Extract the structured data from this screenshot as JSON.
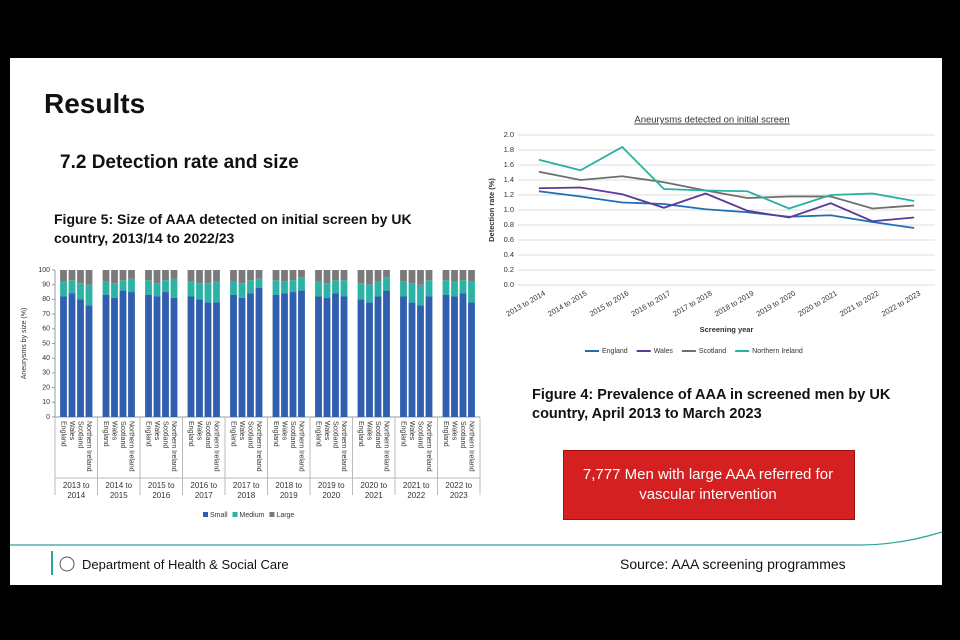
{
  "title": "Results",
  "section": "7.2 Detection rate and size",
  "figure5_caption": "Figure 5: Size of AAA detected on initial screen by UK country, 2013/14 to 2022/23",
  "figure4_caption": "Figure 4: Prevalence of AAA in screened men by UK country, April 2013 to March 2023",
  "callout": "7,777 Men with large AAA referred for vascular intervention",
  "footer_org": "Department of Health & Social Care",
  "footer_source": "Source: AAA screening programmes",
  "chart_data": [
    {
      "type": "stacked_bar",
      "y_label": "Aneurysms by size (%)",
      "groups": [
        "2013 to 2014",
        "2014 to 2015",
        "2015 to 2016",
        "2016 to 2017",
        "2017 to 2018",
        "2018 to 2019",
        "2019 to 2020",
        "2020 to 2021",
        "2021 to 2022",
        "2022 to 2023"
      ],
      "categories": [
        "England",
        "Wales",
        "Scotland",
        "Northern Ireland",
        "England",
        "Wales",
        "Scotland",
        "Northern Ireland",
        "England",
        "Wales",
        "Scotland",
        "Northern Ireland",
        "England",
        "Wales",
        "Scotland",
        "Northern Ireland",
        "England",
        "Wales",
        "Scotland",
        "Northern Ireland",
        "England",
        "Wales",
        "Scotland",
        "Northern Ireland",
        "England",
        "Wales",
        "Scotland",
        "Northern Ireland",
        "England",
        "Wales",
        "Scotland",
        "Northern Ireland",
        "England",
        "Wales",
        "Scotland",
        "Northern Ireland",
        "England",
        "Wales",
        "Scotland",
        "Northern Ireland"
      ],
      "series": [
        {
          "name": "Small",
          "color": "#2f5fae",
          "values": [
            82,
            84,
            80,
            76,
            83,
            81,
            86,
            85,
            83,
            82,
            85,
            81,
            82,
            80,
            78,
            78,
            83,
            81,
            84,
            88,
            83,
            84,
            85,
            86,
            82,
            81,
            84,
            82,
            80,
            78,
            82,
            86,
            82,
            78,
            76,
            82,
            83,
            82,
            84,
            78
          ]
        },
        {
          "name": "Medium",
          "color": "#2cb3a5",
          "values": [
            10,
            9,
            11,
            14,
            9,
            10,
            7,
            9,
            10,
            9,
            8,
            13,
            10,
            11,
            13,
            14,
            9,
            10,
            9,
            6,
            10,
            8,
            8,
            9,
            10,
            10,
            9,
            11,
            11,
            12,
            10,
            9,
            10,
            13,
            14,
            11,
            10,
            10,
            9,
            14
          ]
        },
        {
          "name": "Large",
          "color": "#7a7a7a",
          "values": [
            8,
            7,
            9,
            10,
            8,
            9,
            7,
            6,
            7,
            9,
            7,
            6,
            8,
            9,
            9,
            8,
            8,
            9,
            7,
            6,
            7,
            8,
            7,
            5,
            8,
            9,
            7,
            7,
            9,
            10,
            8,
            5,
            8,
            9,
            10,
            7,
            7,
            8,
            7,
            8
          ]
        }
      ],
      "ylim": [
        0,
        100
      ],
      "yticks": [
        0,
        10,
        20,
        30,
        40,
        50,
        60,
        70,
        80,
        90,
        100
      ]
    },
    {
      "type": "line",
      "title": "Aneurysms detected on initial screen",
      "x_label": "Screening year",
      "y_label": "Detection rate (%)",
      "categories": [
        "2013 to 2014",
        "2014 to 2015",
        "2015 to 2016",
        "2016 to 2017",
        "2017 to 2018",
        "2018 to 2019",
        "2019 to 2020",
        "2020 to 2021",
        "2021 to 2022",
        "2022 to 2023"
      ],
      "series": [
        {
          "name": "England",
          "color": "#1f6fb5",
          "values": [
            1.25,
            1.18,
            1.1,
            1.08,
            1.01,
            0.97,
            0.91,
            0.93,
            0.84,
            0.76
          ]
        },
        {
          "name": "Wales",
          "color": "#5b3a9a",
          "values": [
            1.29,
            1.3,
            1.21,
            1.03,
            1.22,
            0.99,
            0.9,
            1.09,
            0.85,
            0.9
          ]
        },
        {
          "name": "Scotland",
          "color": "#6e6e6e",
          "values": [
            1.51,
            1.4,
            1.45,
            1.37,
            1.26,
            1.16,
            1.18,
            1.18,
            1.02,
            1.06
          ]
        },
        {
          "name": "Northern Ireland",
          "color": "#2ab0a0",
          "values": [
            1.67,
            1.53,
            1.84,
            1.28,
            1.26,
            1.25,
            1.02,
            1.2,
            1.22,
            1.12
          ]
        }
      ],
      "ylim": [
        0,
        2
      ],
      "yticks": [
        {
          "value": 0,
          "label": "0.0"
        },
        0.2,
        0.4,
        0.6,
        0.8,
        {
          "value": 1,
          "label": "1.0"
        },
        1.2,
        1.4,
        1.6,
        1.8,
        {
          "value": 2,
          "label": "2.0"
        }
      ],
      "grid": true
    }
  ]
}
